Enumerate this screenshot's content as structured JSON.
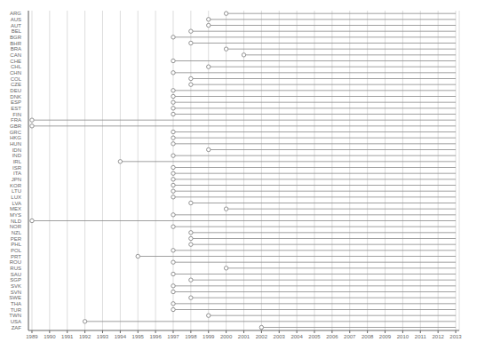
{
  "chart_data": {
    "type": "lollipop",
    "orientation": "horizontal",
    "categories": [
      "ARG",
      "AUS",
      "AUT",
      "BEL",
      "BGR",
      "BHR",
      "BRA",
      "CAN",
      "CHE",
      "CHL",
      "CHN",
      "COL",
      "CZE",
      "DEU",
      "DNK",
      "ESP",
      "EST",
      "FIN",
      "FRA",
      "GBR",
      "GRC",
      "HKG",
      "HUN",
      "IDN",
      "IND",
      "IRL",
      "ISR",
      "ITA",
      "JPN",
      "KOR",
      "LTU",
      "LUX",
      "LVA",
      "MEX",
      "MYS",
      "NLD",
      "NOR",
      "NZL",
      "PER",
      "PHL",
      "POL",
      "PRT",
      "ROU",
      "RUS",
      "SAU",
      "SGP",
      "SVK",
      "SVN",
      "SWE",
      "THA",
      "TUR",
      "TWN",
      "USA",
      "ZAF"
    ],
    "values": [
      2000,
      1999,
      1999,
      1998,
      1997,
      1998,
      2000,
      2001,
      1997,
      1999,
      1997,
      1998,
      1998,
      1997,
      1997,
      1997,
      1997,
      1997,
      1989,
      1989,
      1997,
      1997,
      1997,
      1999,
      1997,
      1994,
      1997,
      1997,
      1997,
      1997,
      1997,
      1997,
      1998,
      2000,
      1997,
      1989,
      1997,
      1998,
      1998,
      1998,
      1997,
      1995,
      1997,
      2000,
      1997,
      1998,
      1997,
      1997,
      1998,
      1997,
      1997,
      1999,
      1992,
      2002
    ],
    "end": 2013,
    "xlim": [
      1988.8,
      2013.2
    ],
    "xticks": [
      1989,
      1990,
      1991,
      1992,
      1993,
      1994,
      1995,
      1996,
      1997,
      1998,
      1999,
      2000,
      2001,
      2002,
      2003,
      2004,
      2005,
      2006,
      2007,
      2008,
      2009,
      2010,
      2011,
      2012,
      2013
    ],
    "color": "#888888",
    "marker": "circle",
    "grid": true
  }
}
